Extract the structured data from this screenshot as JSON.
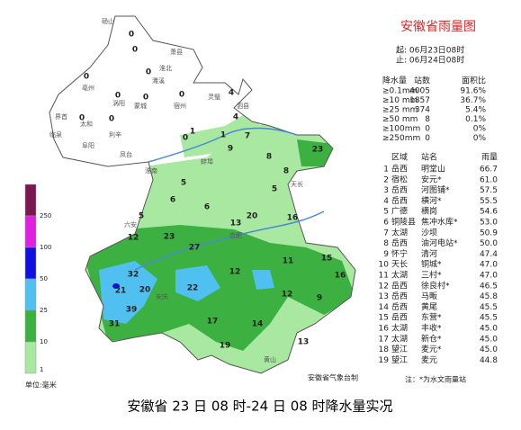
{
  "header": {
    "title": "安徽省雨量图",
    "start": "起: 06月23日08时",
    "end": "止: 06月24日08时"
  },
  "stats": {
    "columns": [
      "降水量",
      "站数",
      "面积比"
    ],
    "rows": [
      [
        "≥0.1mm",
        "4005",
        "91.6%"
      ],
      [
        "≥10 mm",
        "1857",
        "36.7%"
      ],
      [
        "≥25 mm",
        "374",
        "5.4%"
      ],
      [
        "≥50 mm",
        "8",
        "0.1%"
      ],
      [
        "≥100mm",
        "0",
        "0%"
      ],
      [
        "≥250mm",
        "0",
        "0%"
      ]
    ]
  },
  "ranking": {
    "columns": [
      "区域",
      "站名",
      "雨量"
    ],
    "rows": [
      [
        "1",
        "岳西",
        "明堂山",
        "66.7"
      ],
      [
        "2",
        "宿松",
        "安元*",
        "61.0"
      ],
      [
        "3",
        "岳西",
        "河图铺*",
        "57.5"
      ],
      [
        "4",
        "岳西",
        "横河*",
        "55.5"
      ],
      [
        "5",
        "广德",
        "横岗",
        "54.6"
      ],
      [
        "6",
        "铜陵县",
        "焦冲水库*",
        "53.0"
      ],
      [
        "7",
        "太湖",
        "沙坝",
        "50.9"
      ],
      [
        "8",
        "岳西",
        "油河电站*",
        "50.0"
      ],
      [
        "9",
        "怀宁",
        "清河",
        "47.4"
      ],
      [
        "10",
        "天长",
        "铜城*",
        "47.0"
      ],
      [
        "11",
        "太湖",
        "三村*",
        "47.0"
      ],
      [
        "12",
        "岳西",
        "徐良村*",
        "46.5"
      ],
      [
        "13",
        "岳西",
        "马畈",
        "45.8"
      ],
      [
        "14",
        "岳西",
        "黄尾",
        "45.5"
      ],
      [
        "15",
        "岳西",
        "东营*",
        "45.5"
      ],
      [
        "16",
        "太湖",
        "丰收*",
        "45.0"
      ],
      [
        "17",
        "太湖",
        "新仓*",
        "45.0"
      ],
      [
        "18",
        "望江",
        "麦元*",
        "45.0"
      ],
      [
        "19",
        "望江",
        "麦元",
        "44.8"
      ]
    ],
    "note": "注：*为水文雨量站"
  },
  "legend": {
    "labels": [
      "250",
      "100",
      "50",
      "25",
      "10",
      "1"
    ],
    "unit": "单位:毫米",
    "colors": [
      "#7a1850",
      "#e020e0",
      "#1010e0",
      "#50c0f0",
      "#3cb040",
      "#a8e8a0"
    ]
  },
  "map": {
    "labels": [
      "0",
      "0",
      "0",
      "0",
      "0",
      "0",
      "0",
      "0",
      "0",
      "0",
      "1",
      "1",
      "4",
      "4",
      "7",
      "9",
      "8",
      "8",
      "23",
      "5",
      "5",
      "6",
      "12",
      "23",
      "27",
      "13",
      "20",
      "16",
      "12",
      "11",
      "15",
      "16",
      "32",
      "21",
      "20",
      "39",
      "22",
      "31",
      "17",
      "19",
      "14",
      "12",
      "9",
      "13",
      "5",
      "6"
    ],
    "places": [
      "砀山",
      "萧县",
      "淮北",
      "濉溪",
      "亳州",
      "涡阳",
      "宿州",
      "灵璧",
      "泗县",
      "蒙城",
      "界首",
      "太和",
      "临泉",
      "阜阳",
      "利辛",
      "凤台",
      "淮南",
      "蚌埠",
      "天长",
      "六安",
      "合肥",
      "安庆",
      "黄山"
    ]
  },
  "credit": "安徽省气象台制",
  "caption": "安徽省 23 日 08 时-24 日 08 时降水量实况"
}
